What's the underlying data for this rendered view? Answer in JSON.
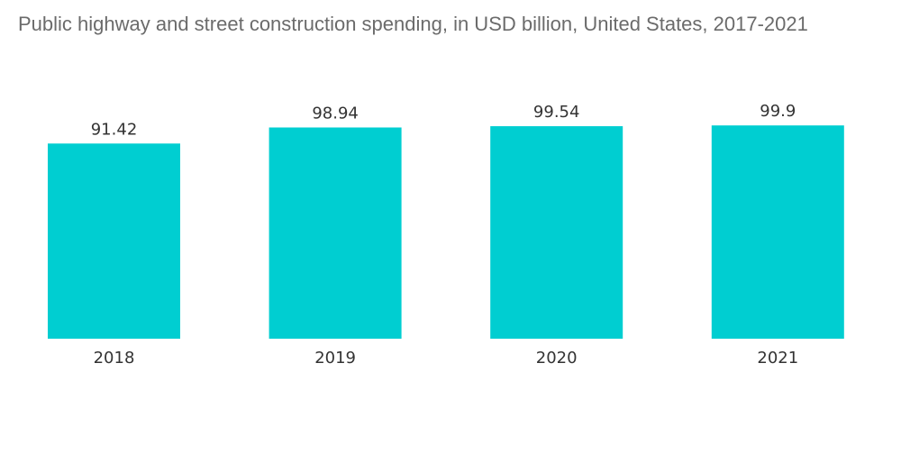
{
  "chart_data": {
    "type": "bar",
    "title": "Public highway and street construction spending, in USD billion, United States, 2017-2021",
    "categories": [
      "2018",
      "2019",
      "2020",
      "2021"
    ],
    "values": [
      91.42,
      98.94,
      99.54,
      99.9
    ],
    "value_labels": [
      "91.42",
      "98.94",
      "99.54",
      "99.9"
    ],
    "ylim": [
      0,
      100
    ],
    "grid": false,
    "legend": "none",
    "bar_color": "#00CED1"
  }
}
